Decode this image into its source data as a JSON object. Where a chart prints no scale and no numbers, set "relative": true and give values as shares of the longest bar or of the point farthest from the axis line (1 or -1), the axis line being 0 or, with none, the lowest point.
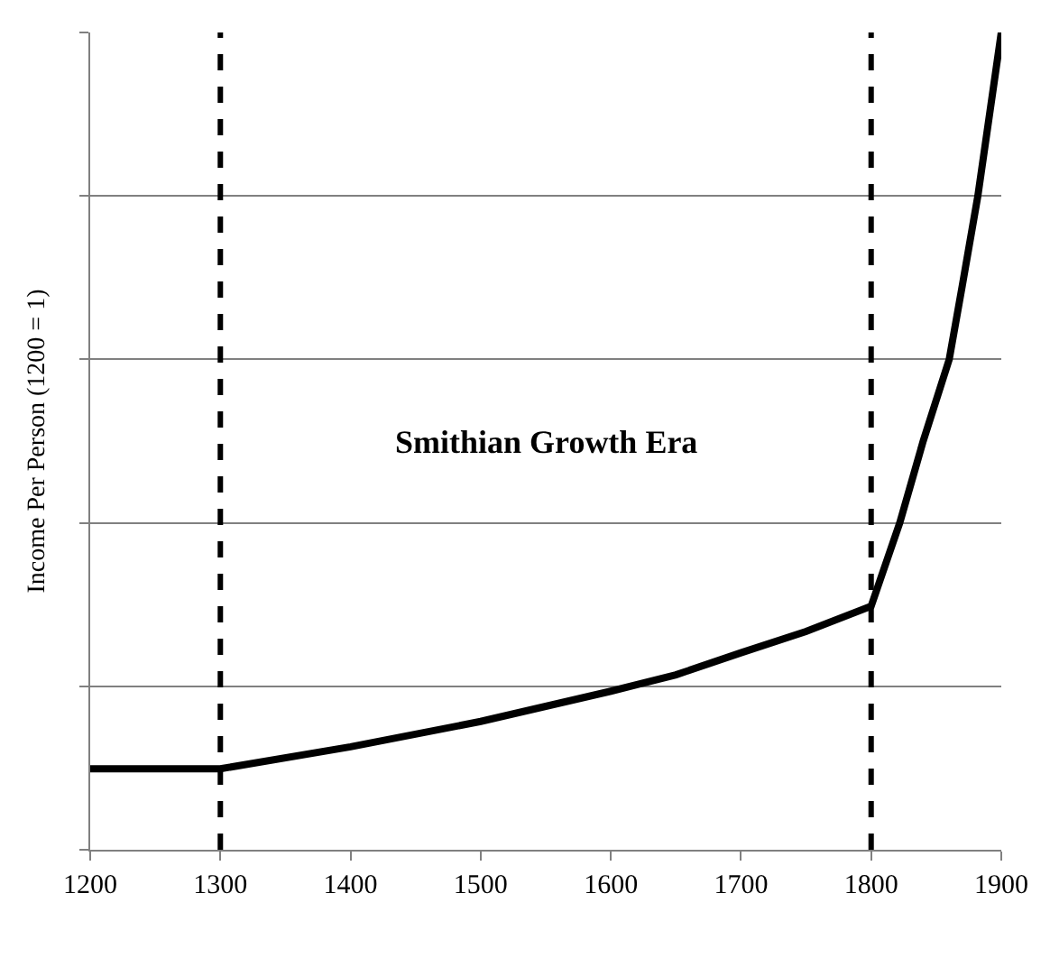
{
  "chart_data": {
    "type": "line",
    "relative": true,
    "ylabel": "Income Per Person (1200 = 1)",
    "x": [
      1200,
      1300,
      1400,
      1500,
      1600,
      1650,
      1700,
      1750,
      1800,
      1822,
      1840,
      1860,
      1870,
      1882,
      1900
    ],
    "series": [
      {
        "color": "#000000",
        "values": [
          0.099,
          0.099,
          0.126,
          0.157,
          0.194,
          0.214,
          0.241,
          0.267,
          0.298,
          0.4,
          0.5,
          0.6,
          0.69,
          0.8,
          1.0
        ]
      }
    ],
    "xlim": [
      1200,
      1900
    ],
    "xticks": [
      1200,
      1300,
      1400,
      1500,
      1600,
      1700,
      1800,
      1900
    ],
    "grid": "y",
    "line_style": "solid",
    "marker": "none",
    "ref_lines": [
      {
        "axis": "x",
        "value": 1300,
        "color": "#000000",
        "line_style": "dashed"
      },
      {
        "axis": "x",
        "value": 1800,
        "color": "#000000",
        "line_style": "dashed"
      }
    ],
    "annotations": [
      "Smithian Growth Era"
    ]
  }
}
